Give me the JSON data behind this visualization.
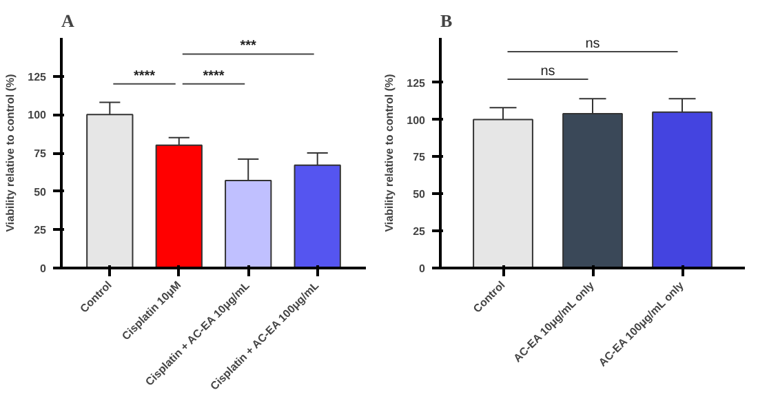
{
  "chart_data": [
    {
      "type": "bar",
      "title": "A",
      "ylabel": "Viability relative to control (%)",
      "categories": [
        "Control",
        "Cisplatin 10μM",
        "Cisplatin + AC-EA 10μg/mL",
        "Cisplatin + AC-EA 100μg/mL"
      ],
      "values": [
        100,
        80,
        57,
        67
      ],
      "colors": [
        "#e6e6e6",
        "#ff0000",
        "#c0c0ff",
        "#5555f0"
      ],
      "errors": [
        [
          100,
          108
        ],
        [
          80,
          85
        ],
        [
          57,
          71
        ],
        [
          67,
          75
        ]
      ],
      "ylim": [
        0,
        150
      ],
      "yticks": [
        0,
        25,
        50,
        75,
        100,
        125
      ],
      "grid": false,
      "annotations": [
        "****",
        "****",
        "***"
      ]
    },
    {
      "type": "bar",
      "title": "B",
      "ylabel": "Viability relative to control (%)",
      "categories": [
        "Control",
        "AC-EA 10μg/mL only",
        "AC-EA 100μg/mL only"
      ],
      "values": [
        100,
        104,
        105
      ],
      "colors": [
        "#e6e6e6",
        "#3a4858",
        "#4444e0"
      ],
      "errors": [
        [
          100,
          108
        ],
        [
          104,
          114
        ],
        [
          105,
          114
        ]
      ],
      "ylim": [
        0,
        155
      ],
      "yticks": [
        0,
        25,
        50,
        75,
        100,
        125
      ],
      "grid": false,
      "annotations": [
        "ns",
        "ns"
      ]
    }
  ]
}
